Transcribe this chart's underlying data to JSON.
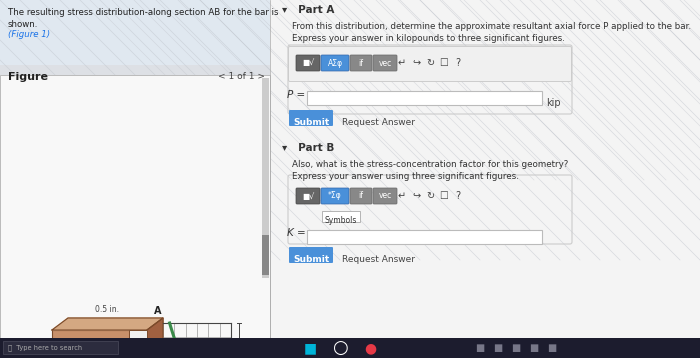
{
  "bg_color": "#e8eaed",
  "left_bg": "#dde0e5",
  "right_bg": "#f4f4f4",
  "text_color": "#333333",
  "link_color": "#1a73e8",
  "submit_btn_color": "#4a90d9",
  "submit_text_color": "#ffffff",
  "input_border": "#bbbbbb",
  "input_bg": "#ffffff",
  "toolbar_dark": "#555555",
  "toolbar_blue": "#4a90d9",
  "toolbar_gray": "#888888",
  "bar_face": "#c8906a",
  "bar_top": "#d4a882",
  "bar_right": "#a06040",
  "bar_edge": "#7a4a2a",
  "grid_color": "#999999",
  "curve_color": "#3a8a4a",
  "dim_color": "#444444",
  "diag_color": "#c0c4cc",
  "left_text1": "The resulting stress distribution-along section AB for the bar is",
  "left_text2": "shown.",
  "left_text3": "(Figure 1)",
  "figure_label": "Figure",
  "nav_label": "< 1 of 1 >",
  "part_a_title": "▾   Part A",
  "part_a_line1": "From this distribution, determine the approximate resultant axial force P applied to the bar.",
  "part_a_line2": "Express your answer in kilopounds to three significant figures.",
  "p_label": "P =",
  "kip_label": "kip",
  "submit_a": "Submit",
  "req_ans_a": "Request Answer",
  "part_b_title": "▾   Part B",
  "part_b_line1": "Also, what is the stress-concentration factor for this geometry?",
  "part_b_line2": "Express your answer using three significant figures.",
  "k_label": "K =",
  "symbols_label": "Symbols",
  "submit_b": "Submit",
  "req_ans_b": "Request Answer",
  "taskbar_color": "#1c1c2e",
  "search_text": "Type here to search"
}
